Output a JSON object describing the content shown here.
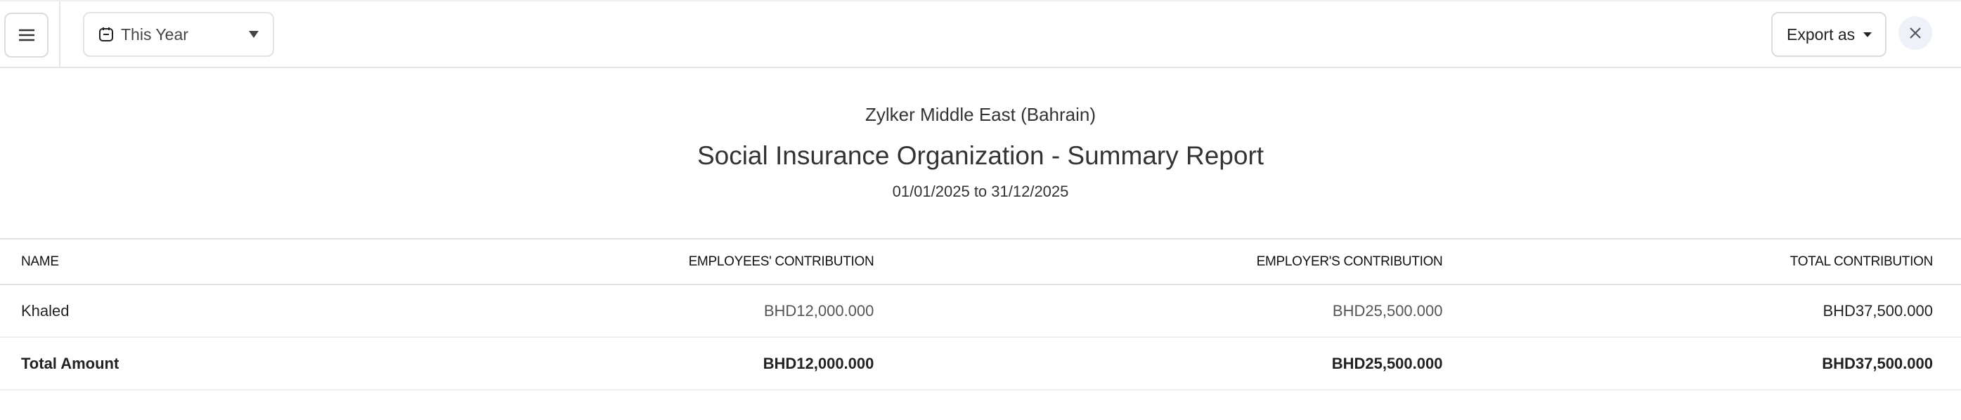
{
  "toolbar": {
    "period_label": "This Year",
    "export_label": "Export as"
  },
  "report": {
    "company": "Zylker Middle East (Bahrain)",
    "title": "Social Insurance Organization - Summary Report",
    "date_range": "01/01/2025 to 31/12/2025"
  },
  "table": {
    "headers": [
      "NAME",
      "EMPLOYEES' CONTRIBUTION",
      "EMPLOYER'S CONTRIBUTION",
      "TOTAL CONTRIBUTION"
    ],
    "rows": [
      [
        "Khaled",
        "BHD12,000.000",
        "BHD25,500.000",
        "BHD37,500.000"
      ]
    ],
    "total": [
      "Total Amount",
      "BHD12,000.000",
      "BHD25,500.000",
      "BHD37,500.000"
    ]
  }
}
